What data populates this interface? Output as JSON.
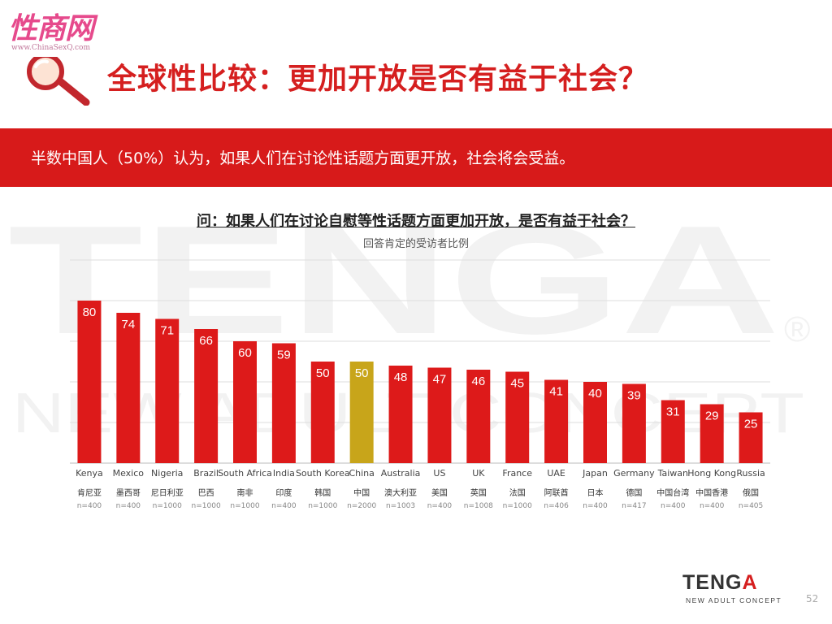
{
  "watermark": {
    "text": "性商网",
    "url": "www.ChinaSexQ.com"
  },
  "header": {
    "title": "全球性比较：更加开放是否有益于社会？"
  },
  "banner": {
    "text": "半数中国人（50%）认为，如果人们在讨论性话题方面更开放，社会将会受益。"
  },
  "background_logo": {
    "word": "TENGA",
    "tagline": "NEW ADULT CONCEPT",
    "mark": "®"
  },
  "chart_data": {
    "type": "bar",
    "title": "问：如果人们在讨论自慰等性话题方面更加开放，是否有益于社会？",
    "subtitle": "回答肯定的受访者比例",
    "xlabel": "",
    "ylabel": "",
    "ylim": [
      0,
      100
    ],
    "grid": true,
    "categories": [
      "Kenya",
      "Mexico",
      "Nigeria",
      "Brazil",
      "South Africa",
      "India",
      "South Korea",
      "China",
      "Australia",
      "US",
      "UK",
      "France",
      "UAE",
      "Japan",
      "Germany",
      "Taiwan",
      "Hong Kong",
      "Russia"
    ],
    "categories_cn": [
      "肯尼亚",
      "墨西哥",
      "尼日利亚",
      "巴西",
      "南非",
      "印度",
      "韩国",
      "中国",
      "澳大利亚",
      "美国",
      "英国",
      "法国",
      "阿联酋",
      "日本",
      "德国",
      "中国台湾",
      "中国香港",
      "俄国"
    ],
    "sample_sizes": [
      "n=400",
      "n=400",
      "n=1000",
      "n=1000",
      "n=1000",
      "n=400",
      "n=1000",
      "n=2000",
      "n=1003",
      "n=400",
      "n=1008",
      "n=1000",
      "n=406",
      "n=400",
      "n=417",
      "n=400",
      "n=400",
      "n=405"
    ],
    "values": [
      80,
      74,
      71,
      66,
      60,
      59,
      50,
      50,
      48,
      47,
      46,
      45,
      41,
      40,
      39,
      31,
      29,
      25
    ],
    "highlight": "China",
    "colors": {
      "bar": "#dd1a1a",
      "highlight": "#c8a51a",
      "label": "#ffffff",
      "grid": "#dddddd"
    }
  },
  "footer": {
    "logo_main": "TENG",
    "logo_accent": "A",
    "tagline": "NEW ADULT CONCEPT",
    "page": "52"
  }
}
